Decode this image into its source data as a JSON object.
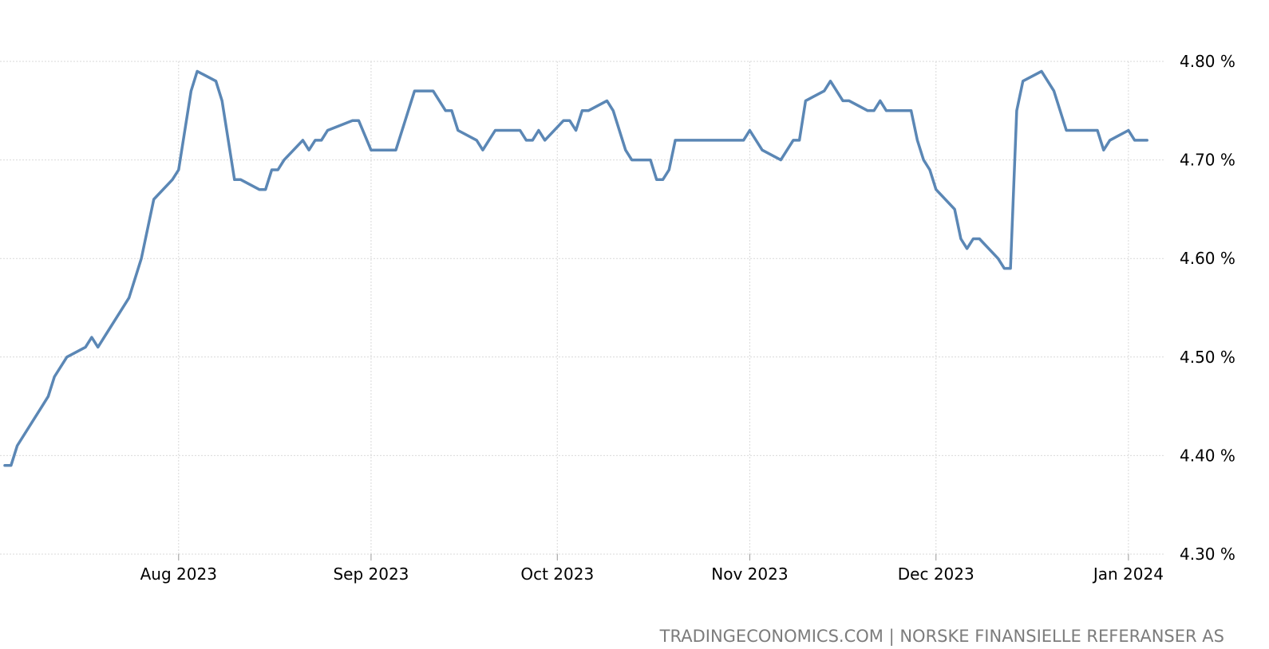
{
  "chart_data": {
    "type": "line",
    "title": "",
    "xlabel": "",
    "ylabel": "",
    "y_unit": "%",
    "yticks": [
      {
        "value": 4.8,
        "label": "4.80 %"
      },
      {
        "value": 4.7,
        "label": "4.70 %"
      },
      {
        "value": 4.6,
        "label": "4.60 %"
      },
      {
        "value": 4.5,
        "label": "4.50 %"
      },
      {
        "value": 4.4,
        "label": "4.40 %"
      },
      {
        "value": 4.3,
        "label": "4.30 %"
      }
    ],
    "ylim": [
      4.3,
      4.8
    ],
    "xlim": [
      "2023-07-04",
      "2024-01-05"
    ],
    "xticks": [
      {
        "date": "2023-08-01",
        "label": "Aug 2023"
      },
      {
        "date": "2023-09-01",
        "label": "Sep 2023"
      },
      {
        "date": "2023-10-01",
        "label": "Oct 2023"
      },
      {
        "date": "2023-11-01",
        "label": "Nov 2023"
      },
      {
        "date": "2023-12-01",
        "label": "Dec 2023"
      },
      {
        "date": "2024-01-01",
        "label": "Jan 2024"
      }
    ],
    "grid": true,
    "legend": "none",
    "line_color": "#5b87b5",
    "series": [
      {
        "points": [
          [
            "2023-07-04",
            4.39
          ],
          [
            "2023-07-05",
            4.39
          ],
          [
            "2023-07-06",
            4.41
          ],
          [
            "2023-07-10",
            4.45
          ],
          [
            "2023-07-11",
            4.46
          ],
          [
            "2023-07-12",
            4.48
          ],
          [
            "2023-07-14",
            4.5
          ],
          [
            "2023-07-17",
            4.51
          ],
          [
            "2023-07-18",
            4.52
          ],
          [
            "2023-07-19",
            4.51
          ],
          [
            "2023-07-24",
            4.56
          ],
          [
            "2023-07-26",
            4.6
          ],
          [
            "2023-07-28",
            4.66
          ],
          [
            "2023-07-31",
            4.68
          ],
          [
            "2023-08-01",
            4.69
          ],
          [
            "2023-08-03",
            4.77
          ],
          [
            "2023-08-04",
            4.79
          ],
          [
            "2023-08-07",
            4.78
          ],
          [
            "2023-08-08",
            4.76
          ],
          [
            "2023-08-10",
            4.68
          ],
          [
            "2023-08-11",
            4.68
          ],
          [
            "2023-08-14",
            4.67
          ],
          [
            "2023-08-15",
            4.67
          ],
          [
            "2023-08-16",
            4.69
          ],
          [
            "2023-08-17",
            4.69
          ],
          [
            "2023-08-18",
            4.7
          ],
          [
            "2023-08-21",
            4.72
          ],
          [
            "2023-08-22",
            4.71
          ],
          [
            "2023-08-23",
            4.72
          ],
          [
            "2023-08-24",
            4.72
          ],
          [
            "2023-08-25",
            4.73
          ],
          [
            "2023-08-29",
            4.74
          ],
          [
            "2023-08-30",
            4.74
          ],
          [
            "2023-09-01",
            4.71
          ],
          [
            "2023-09-05",
            4.71
          ],
          [
            "2023-09-08",
            4.77
          ],
          [
            "2023-09-11",
            4.77
          ],
          [
            "2023-09-13",
            4.75
          ],
          [
            "2023-09-14",
            4.75
          ],
          [
            "2023-09-15",
            4.73
          ],
          [
            "2023-09-18",
            4.72
          ],
          [
            "2023-09-19",
            4.71
          ],
          [
            "2023-09-21",
            4.73
          ],
          [
            "2023-09-25",
            4.73
          ],
          [
            "2023-09-26",
            4.72
          ],
          [
            "2023-09-27",
            4.72
          ],
          [
            "2023-09-28",
            4.73
          ],
          [
            "2023-09-29",
            4.72
          ],
          [
            "2023-10-02",
            4.74
          ],
          [
            "2023-10-03",
            4.74
          ],
          [
            "2023-10-04",
            4.73
          ],
          [
            "2023-10-05",
            4.75
          ],
          [
            "2023-10-06",
            4.75
          ],
          [
            "2023-10-09",
            4.76
          ],
          [
            "2023-10-10",
            4.75
          ],
          [
            "2023-10-12",
            4.71
          ],
          [
            "2023-10-13",
            4.7
          ],
          [
            "2023-10-16",
            4.7
          ],
          [
            "2023-10-17",
            4.68
          ],
          [
            "2023-10-18",
            4.68
          ],
          [
            "2023-10-19",
            4.69
          ],
          [
            "2023-10-20",
            4.72
          ],
          [
            "2023-10-31",
            4.72
          ],
          [
            "2023-11-01",
            4.73
          ],
          [
            "2023-11-03",
            4.71
          ],
          [
            "2023-11-06",
            4.7
          ],
          [
            "2023-11-08",
            4.72
          ],
          [
            "2023-11-09",
            4.72
          ],
          [
            "2023-11-10",
            4.76
          ],
          [
            "2023-11-13",
            4.77
          ],
          [
            "2023-11-14",
            4.78
          ],
          [
            "2023-11-16",
            4.76
          ],
          [
            "2023-11-17",
            4.76
          ],
          [
            "2023-11-20",
            4.75
          ],
          [
            "2023-11-21",
            4.75
          ],
          [
            "2023-11-22",
            4.76
          ],
          [
            "2023-11-23",
            4.75
          ],
          [
            "2023-11-27",
            4.75
          ],
          [
            "2023-11-28",
            4.72
          ],
          [
            "2023-11-29",
            4.7
          ],
          [
            "2023-11-30",
            4.69
          ],
          [
            "2023-12-01",
            4.67
          ],
          [
            "2023-12-04",
            4.65
          ],
          [
            "2023-12-05",
            4.62
          ],
          [
            "2023-12-06",
            4.61
          ],
          [
            "2023-12-07",
            4.62
          ],
          [
            "2023-12-08",
            4.62
          ],
          [
            "2023-12-11",
            4.6
          ],
          [
            "2023-12-12",
            4.59
          ],
          [
            "2023-12-13",
            4.59
          ],
          [
            "2023-12-14",
            4.75
          ],
          [
            "2023-12-15",
            4.78
          ],
          [
            "2023-12-18",
            4.79
          ],
          [
            "2023-12-20",
            4.77
          ],
          [
            "2023-12-22",
            4.73
          ],
          [
            "2023-12-27",
            4.73
          ],
          [
            "2023-12-28",
            4.71
          ],
          [
            "2023-12-29",
            4.72
          ],
          [
            "2024-01-01",
            4.73
          ],
          [
            "2024-01-02",
            4.72
          ],
          [
            "2024-01-03",
            4.72
          ],
          [
            "2024-01-04",
            4.72
          ]
        ]
      }
    ]
  },
  "footer": {
    "source": "TRADINGECONOMICS.COM | NORSKE FINANSIELLE REFERANSER AS"
  }
}
